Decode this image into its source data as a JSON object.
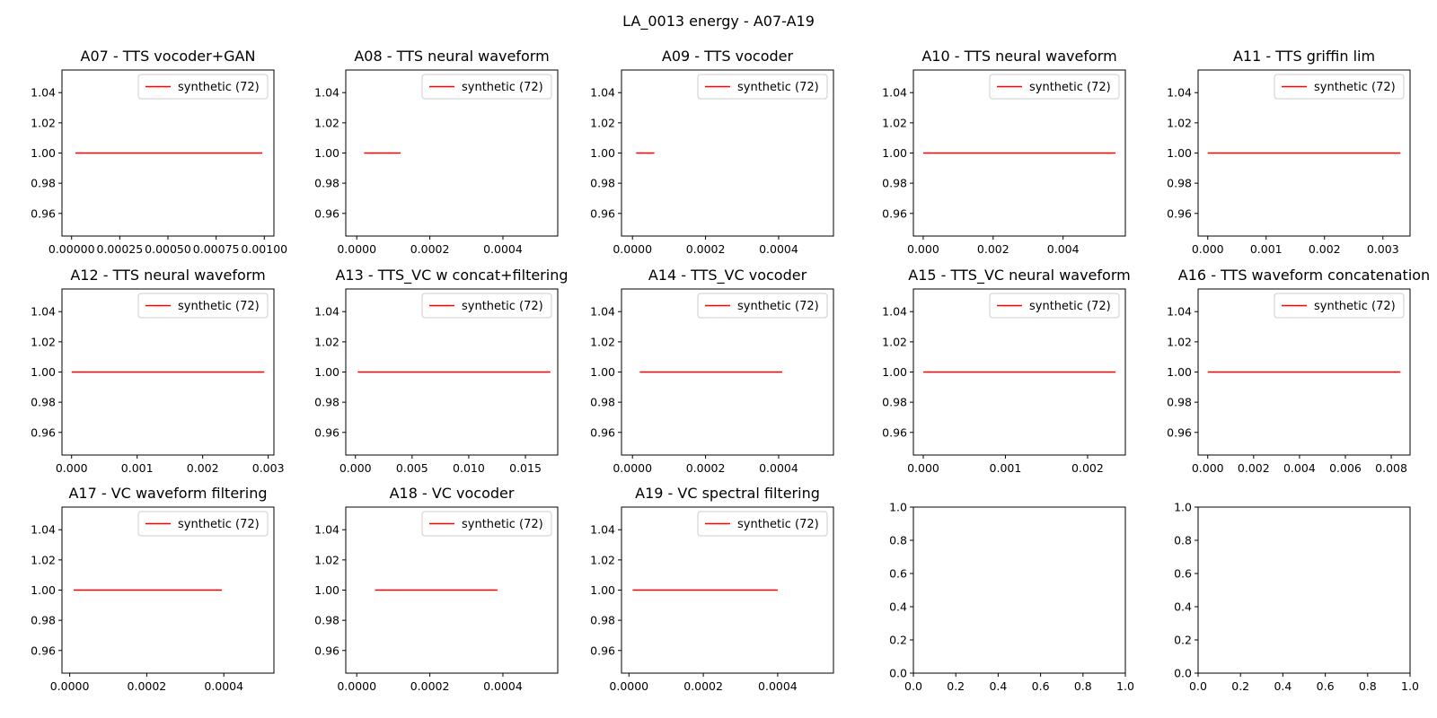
{
  "figure": {
    "title": "LA_0013 energy - A07-A19"
  },
  "chart_data": [
    {
      "type": "line",
      "title": "A07 - TTS vocoder+GAN",
      "xlim": [
        -5e-05,
        0.00105
      ],
      "ylim": [
        0.945,
        1.055
      ],
      "xticks": [
        "0.00000",
        "0.00025",
        "0.00050",
        "0.00075",
        "0.00100"
      ],
      "xtick_values": [
        0,
        0.00025,
        0.0005,
        0.00075,
        0.001
      ],
      "yticks": [
        "0.96",
        "0.98",
        "1.00",
        "1.02",
        "1.04"
      ],
      "ytick_values": [
        0.96,
        0.98,
        1.0,
        1.02,
        1.04
      ],
      "legend_position": "top-right",
      "series": [
        {
          "name": "synthetic (72)",
          "color": "#ff0000",
          "x": [
            2e-05,
            0.00099
          ],
          "y": [
            1.0,
            1.0
          ]
        }
      ]
    },
    {
      "type": "line",
      "title": "A08 - TTS neural waveform",
      "xlim": [
        -3e-05,
        0.00055
      ],
      "ylim": [
        0.945,
        1.055
      ],
      "xticks": [
        "0.0000",
        "0.0002",
        "0.0004"
      ],
      "xtick_values": [
        0,
        0.0002,
        0.0004
      ],
      "yticks": [
        "0.96",
        "0.98",
        "1.00",
        "1.02",
        "1.04"
      ],
      "ytick_values": [
        0.96,
        0.98,
        1.0,
        1.02,
        1.04
      ],
      "legend_position": "top-right",
      "series": [
        {
          "name": "synthetic (72)",
          "color": "#ff0000",
          "x": [
            2e-05,
            0.00012
          ],
          "y": [
            1.0,
            1.0
          ]
        }
      ]
    },
    {
      "type": "line",
      "title": "A09 - TTS vocoder",
      "xlim": [
        -3e-05,
        0.00055
      ],
      "ylim": [
        0.945,
        1.055
      ],
      "xticks": [
        "0.0000",
        "0.0002",
        "0.0004"
      ],
      "xtick_values": [
        0,
        0.0002,
        0.0004
      ],
      "yticks": [
        "0.96",
        "0.98",
        "1.00",
        "1.02",
        "1.04"
      ],
      "ytick_values": [
        0.96,
        0.98,
        1.0,
        1.02,
        1.04
      ],
      "legend_position": "top-right",
      "series": [
        {
          "name": "synthetic (72)",
          "color": "#ff0000",
          "x": [
            1e-05,
            6e-05
          ],
          "y": [
            1.0,
            1.0
          ]
        }
      ]
    },
    {
      "type": "line",
      "title": "A10 - TTS neural waveform",
      "xlim": [
        -0.00028,
        0.00578
      ],
      "ylim": [
        0.945,
        1.055
      ],
      "xticks": [
        "0.000",
        "0.002",
        "0.004"
      ],
      "xtick_values": [
        0,
        0.002,
        0.004
      ],
      "yticks": [
        "0.96",
        "0.98",
        "1.00",
        "1.02",
        "1.04"
      ],
      "ytick_values": [
        0.96,
        0.98,
        1.0,
        1.02,
        1.04
      ],
      "legend_position": "top-right",
      "series": [
        {
          "name": "synthetic (72)",
          "color": "#ff0000",
          "x": [
            0.0,
            0.0055
          ],
          "y": [
            1.0,
            1.0
          ]
        }
      ]
    },
    {
      "type": "line",
      "title": "A11 - TTS griffin lim",
      "xlim": [
        -0.000165,
        0.003465
      ],
      "ylim": [
        0.945,
        1.055
      ],
      "xticks": [
        "0.000",
        "0.001",
        "0.002",
        "0.003"
      ],
      "xtick_values": [
        0,
        0.001,
        0.002,
        0.003
      ],
      "yticks": [
        "0.96",
        "0.98",
        "1.00",
        "1.02",
        "1.04"
      ],
      "ytick_values": [
        0.96,
        0.98,
        1.0,
        1.02,
        1.04
      ],
      "legend_position": "top-right",
      "series": [
        {
          "name": "synthetic (72)",
          "color": "#ff0000",
          "x": [
            0.0,
            0.0033
          ],
          "y": [
            1.0,
            1.0
          ]
        }
      ]
    },
    {
      "type": "line",
      "title": "A12 - TTS neural waveform",
      "xlim": [
        -0.000147,
        0.003087
      ],
      "ylim": [
        0.945,
        1.055
      ],
      "xticks": [
        "0.000",
        "0.001",
        "0.002",
        "0.003"
      ],
      "xtick_values": [
        0,
        0.001,
        0.002,
        0.003
      ],
      "yticks": [
        "0.96",
        "0.98",
        "1.00",
        "1.02",
        "1.04"
      ],
      "ytick_values": [
        0.96,
        0.98,
        1.0,
        1.02,
        1.04
      ],
      "legend_position": "top-right",
      "series": [
        {
          "name": "synthetic (72)",
          "color": "#ff0000",
          "x": [
            0.0,
            0.00294
          ],
          "y": [
            1.0,
            1.0
          ]
        }
      ]
    },
    {
      "type": "line",
      "title": "A13 - TTS_VC w concat+filtering",
      "xlim": [
        -0.00085,
        0.01785
      ],
      "ylim": [
        0.945,
        1.055
      ],
      "xticks": [
        "0.000",
        "0.005",
        "0.010",
        "0.015"
      ],
      "xtick_values": [
        0,
        0.005,
        0.01,
        0.015
      ],
      "yticks": [
        "0.96",
        "0.98",
        "1.00",
        "1.02",
        "1.04"
      ],
      "ytick_values": [
        0.96,
        0.98,
        1.0,
        1.02,
        1.04
      ],
      "legend_position": "top-right",
      "series": [
        {
          "name": "synthetic (72)",
          "color": "#ff0000",
          "x": [
            0.0002,
            0.0172
          ],
          "y": [
            1.0,
            1.0
          ]
        }
      ]
    },
    {
      "type": "line",
      "title": "A14 - TTS_VC vocoder",
      "xlim": [
        -3e-05,
        0.00055
      ],
      "ylim": [
        0.945,
        1.055
      ],
      "xticks": [
        "0.0000",
        "0.0002",
        "0.0004"
      ],
      "xtick_values": [
        0,
        0.0002,
        0.0004
      ],
      "yticks": [
        "0.96",
        "0.98",
        "1.00",
        "1.02",
        "1.04"
      ],
      "ytick_values": [
        0.96,
        0.98,
        1.0,
        1.02,
        1.04
      ],
      "legend_position": "top-right",
      "series": [
        {
          "name": "synthetic (72)",
          "color": "#ff0000",
          "x": [
            2e-05,
            0.00041
          ],
          "y": [
            1.0,
            1.0
          ]
        }
      ]
    },
    {
      "type": "line",
      "title": "A15 - TTS_VC neural waveform",
      "xlim": [
        -0.00012,
        0.00246
      ],
      "ylim": [
        0.945,
        1.055
      ],
      "xticks": [
        "0.000",
        "0.001",
        "0.002"
      ],
      "xtick_values": [
        0,
        0.001,
        0.002
      ],
      "yticks": [
        "0.96",
        "0.98",
        "1.00",
        "1.02",
        "1.04"
      ],
      "ytick_values": [
        0.96,
        0.98,
        1.0,
        1.02,
        1.04
      ],
      "legend_position": "top-right",
      "series": [
        {
          "name": "synthetic (72)",
          "color": "#ff0000",
          "x": [
            0.0,
            0.00234
          ],
          "y": [
            1.0,
            1.0
          ]
        }
      ]
    },
    {
      "type": "line",
      "title": "A16 - TTS waveform concatenation",
      "xlim": [
        -0.00042,
        0.00882
      ],
      "ylim": [
        0.945,
        1.055
      ],
      "xticks": [
        "0.000",
        "0.002",
        "0.004",
        "0.006",
        "0.008"
      ],
      "xtick_values": [
        0,
        0.002,
        0.004,
        0.006,
        0.008
      ],
      "yticks": [
        "0.96",
        "0.98",
        "1.00",
        "1.02",
        "1.04"
      ],
      "ytick_values": [
        0.96,
        0.98,
        1.0,
        1.02,
        1.04
      ],
      "legend_position": "top-right",
      "series": [
        {
          "name": "synthetic (72)",
          "color": "#ff0000",
          "x": [
            0.0,
            0.0084
          ],
          "y": [
            1.0,
            1.0
          ]
        }
      ]
    },
    {
      "type": "line",
      "title": "A17 - VC waveform filtering",
      "xlim": [
        -2e-05,
        0.00053
      ],
      "ylim": [
        0.945,
        1.055
      ],
      "xticks": [
        "0.0000",
        "0.0002",
        "0.0004"
      ],
      "xtick_values": [
        0,
        0.0002,
        0.0004
      ],
      "yticks": [
        "0.96",
        "0.98",
        "1.00",
        "1.02",
        "1.04"
      ],
      "ytick_values": [
        0.96,
        0.98,
        1.0,
        1.02,
        1.04
      ],
      "legend_position": "top-right",
      "series": [
        {
          "name": "synthetic (72)",
          "color": "#ff0000",
          "x": [
            1e-05,
            0.000395
          ],
          "y": [
            1.0,
            1.0
          ]
        }
      ]
    },
    {
      "type": "line",
      "title": "A18 - VC vocoder",
      "xlim": [
        -3e-05,
        0.00055
      ],
      "ylim": [
        0.945,
        1.055
      ],
      "xticks": [
        "0.0000",
        "0.0002",
        "0.0004"
      ],
      "xtick_values": [
        0,
        0.0002,
        0.0004
      ],
      "yticks": [
        "0.96",
        "0.98",
        "1.00",
        "1.02",
        "1.04"
      ],
      "ytick_values": [
        0.96,
        0.98,
        1.0,
        1.02,
        1.04
      ],
      "legend_position": "top-right",
      "series": [
        {
          "name": "synthetic (72)",
          "color": "#ff0000",
          "x": [
            5e-05,
            0.000385
          ],
          "y": [
            1.0,
            1.0
          ]
        }
      ]
    },
    {
      "type": "line",
      "title": "A19 - VC spectral filtering",
      "xlim": [
        -2e-05,
        0.00055
      ],
      "ylim": [
        0.945,
        1.055
      ],
      "xticks": [
        "0.0000",
        "0.0002",
        "0.0004"
      ],
      "xtick_values": [
        0,
        0.0002,
        0.0004
      ],
      "yticks": [
        "0.96",
        "0.98",
        "1.00",
        "1.02",
        "1.04"
      ],
      "ytick_values": [
        0.96,
        0.98,
        1.0,
        1.02,
        1.04
      ],
      "legend_position": "top-right",
      "series": [
        {
          "name": "synthetic (72)",
          "color": "#ff0000",
          "x": [
            1e-05,
            0.0004
          ],
          "y": [
            1.0,
            1.0
          ]
        }
      ]
    },
    {
      "type": "line",
      "title": "",
      "xlim": [
        0,
        1
      ],
      "ylim": [
        0,
        1
      ],
      "xticks": [
        "0.0",
        "0.2",
        "0.4",
        "0.6",
        "0.8",
        "1.0"
      ],
      "xtick_values": [
        0,
        0.2,
        0.4,
        0.6,
        0.8,
        1.0
      ],
      "yticks": [
        "0.0",
        "0.2",
        "0.4",
        "0.6",
        "0.8",
        "1.0"
      ],
      "ytick_values": [
        0,
        0.2,
        0.4,
        0.6,
        0.8,
        1.0
      ],
      "series": []
    },
    {
      "type": "line",
      "title": "",
      "xlim": [
        0,
        1
      ],
      "ylim": [
        0,
        1
      ],
      "xticks": [
        "0.0",
        "0.2",
        "0.4",
        "0.6",
        "0.8",
        "1.0"
      ],
      "xtick_values": [
        0,
        0.2,
        0.4,
        0.6,
        0.8,
        1.0
      ],
      "yticks": [
        "0.0",
        "0.2",
        "0.4",
        "0.6",
        "0.8",
        "1.0"
      ],
      "ytick_values": [
        0,
        0.2,
        0.4,
        0.6,
        0.8,
        1.0
      ],
      "series": []
    }
  ]
}
